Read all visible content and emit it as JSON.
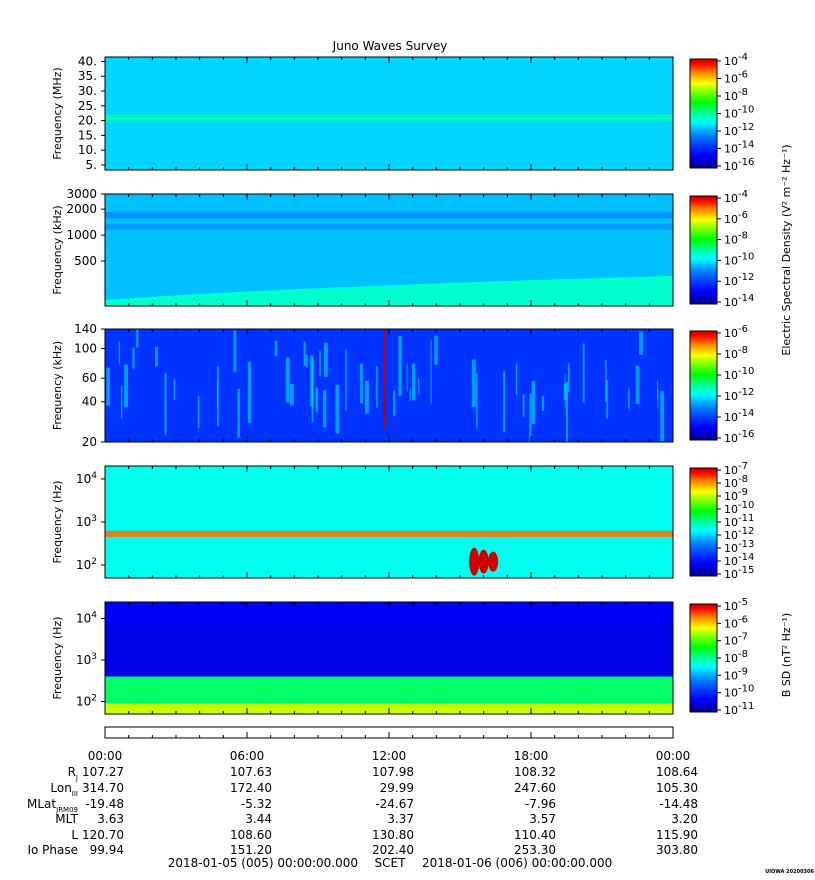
{
  "title": "Juno Waves Survey",
  "scet_label": "SCET",
  "start_time": "2018-01-05 (005) 00:00:00.000",
  "end_time": "2018-01-06 (006) 00:00:00.000",
  "footer_tag": "UIOWA 20200306",
  "electric_cbar_label": "Electric Spectral Density (V² m⁻² Hz⁻¹)",
  "magnetic_cbar_label": "B SD (nT² Hz⁻¹)",
  "colors": {
    "jet": [
      "#00008f",
      "#0000ff",
      "#0080ff",
      "#00ffff",
      "#00ff80",
      "#00ff00",
      "#80ff00",
      "#ffff00",
      "#ff8000",
      "#ff0000",
      "#c00000"
    ]
  },
  "chart_data": [
    {
      "type": "heatmap",
      "ylabel": "Frequency (MHz)",
      "ylim": [
        3.3,
        41.5
      ],
      "yticks": [
        "5.",
        "10.",
        "15.",
        "20.",
        "25.",
        "30.",
        "35.",
        "40."
      ],
      "ytick_values": [
        5,
        10,
        15,
        20,
        25,
        30,
        35,
        40
      ],
      "cbar_ticks": [
        "10-4",
        "10-6",
        "10-8",
        "10-10",
        "10-12",
        "10-14",
        "10-16"
      ],
      "cbar_range": [
        -4,
        -16
      ],
      "background_level": -12.8,
      "features": [
        {
          "kind": "band",
          "y": 21,
          "level": -11.7
        }
      ]
    },
    {
      "type": "heatmap",
      "ylabel": "Frequency (kHz)",
      "ylim": [
        150,
        3000
      ],
      "yscale": "log",
      "yticks": [
        "3000",
        "2000",
        "1000",
        "500"
      ],
      "ytick_values": [
        3000,
        2000,
        1000,
        500
      ],
      "cbar_ticks": [
        "10-4",
        "10-6",
        "10-8",
        "10-10",
        "10-12",
        "10-14"
      ],
      "cbar_range": [
        -4,
        -14
      ],
      "background_level": -11.5,
      "features": [
        {
          "kind": "band",
          "y": 1700,
          "level": -11.9
        },
        {
          "kind": "band",
          "y": 1250,
          "level": -11.8
        },
        {
          "kind": "low_enhancement",
          "level": -10.6
        }
      ]
    },
    {
      "type": "heatmap",
      "ylabel": "Frequency (kHz)",
      "ylim": [
        20,
        140
      ],
      "yscale": "log",
      "yticks": [
        "140",
        "100",
        "60",
        "40",
        "20"
      ],
      "ytick_values": [
        140,
        100,
        60,
        40,
        20
      ],
      "cbar_ticks": [
        "10-6",
        "10-8",
        "10-10",
        "10-12",
        "10-14",
        "10-16"
      ],
      "cbar_range": [
        -6,
        -16
      ],
      "background_level": -14.6,
      "features": [
        {
          "kind": "bursts",
          "level": -13.2
        },
        {
          "kind": "spike",
          "x_hours": 11.75,
          "level": -5.5
        }
      ]
    },
    {
      "type": "heatmap",
      "ylabel": "Frequency (Hz)",
      "ylim": [
        50,
        20000
      ],
      "yscale": "log",
      "yticks": [
        "10^4",
        "10^3",
        "10^2"
      ],
      "ytick_values": [
        10000,
        1000,
        100
      ],
      "cbar_ticks": [
        "10-7",
        "10-8",
        "10-9",
        "10-10",
        "10-11",
        "10-12",
        "10-13",
        "10-14",
        "10-15"
      ],
      "cbar_range": [
        -7,
        -15
      ],
      "background_level": -12.5,
      "features": [
        {
          "kind": "band",
          "y": 530,
          "level": -8.5
        },
        {
          "kind": "blobs",
          "x_hours": 15.6,
          "level": -7.2
        }
      ]
    },
    {
      "type": "heatmap",
      "ylabel": "Frequency (Hz)",
      "ylim": [
        50,
        25000
      ],
      "yscale": "log",
      "yticks": [
        "10^4",
        "10^3",
        "10^2"
      ],
      "ytick_values": [
        10000,
        1000,
        100
      ],
      "cbar_ticks": [
        "10-5",
        "10-6",
        "10-7",
        "10-8",
        "10-9",
        "10-10",
        "10-11"
      ],
      "cbar_range": [
        -4.6,
        -11
      ],
      "background_level": -10.5,
      "features": [
        {
          "kind": "low_frequency_rise",
          "level": -6.8
        }
      ]
    }
  ],
  "time_axis": {
    "labels": [
      "00:00",
      "06:00",
      "12:00",
      "18:00",
      "00:00"
    ],
    "range_hours": [
      0,
      24
    ],
    "minor_every_hours": 1
  },
  "ephemeris": [
    {
      "label": "RJ",
      "values": [
        "107.27",
        "107.63",
        "107.98",
        "108.32",
        "108.64"
      ]
    },
    {
      "label": "LonIII",
      "values": [
        "314.70",
        "172.40",
        "29.99",
        "247.60",
        "105.30"
      ]
    },
    {
      "label": "MLatJRM09",
      "values": [
        "-19.48",
        "-5.32",
        "-24.67",
        "-7.96",
        "-14.48"
      ]
    },
    {
      "label": "MLT",
      "values": [
        "3.63",
        "3.44",
        "3.37",
        "3.57",
        "3.20"
      ]
    },
    {
      "label": "L",
      "values": [
        "120.70",
        "108.60",
        "130.80",
        "110.40",
        "115.90"
      ]
    },
    {
      "label": "Io Phase",
      "values": [
        "99.94",
        "151.20",
        "202.40",
        "253.30",
        "303.80"
      ]
    }
  ]
}
